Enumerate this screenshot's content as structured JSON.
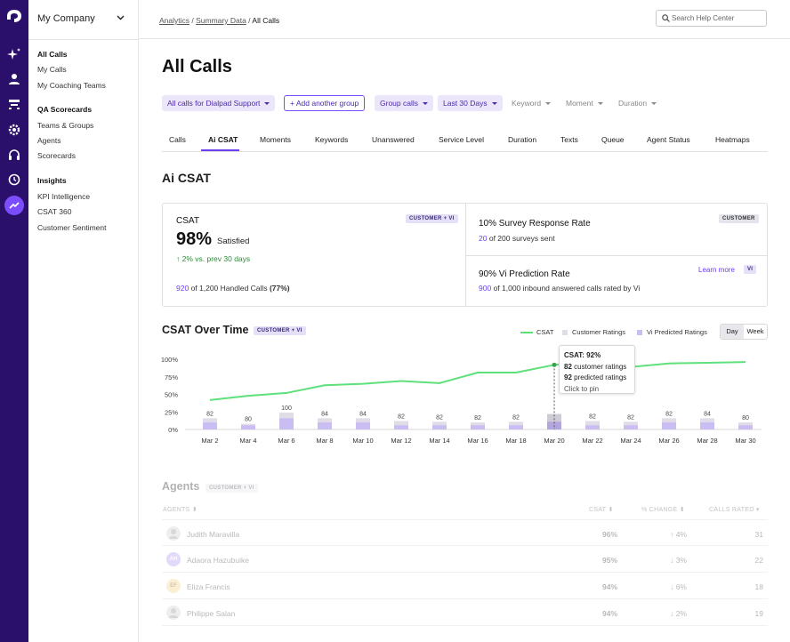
{
  "sidebar": {
    "company": "My Company",
    "sections": [
      {
        "items": [
          "All Calls",
          "My Calls",
          "My Coaching Teams"
        ]
      },
      {
        "heading": "QA Scorecards",
        "items": [
          "Teams & Groups",
          "Agents",
          "Scorecards"
        ]
      },
      {
        "heading": "Insights",
        "items": [
          "KPI Intelligence",
          "CSAT 360",
          "Customer Sentiment"
        ]
      }
    ]
  },
  "breadcrumb": {
    "items": [
      "Analytics",
      "Summary Data"
    ],
    "current": "All Calls",
    "sep": " / "
  },
  "search": {
    "placeholder": "Search Help Center"
  },
  "page": {
    "title": "All Calls"
  },
  "filters": {
    "group": "All calls for Dialpad Support",
    "add_group": "+ Add another group",
    "group_calls": "Group calls",
    "range": "Last 30 Days",
    "keyword": "Keyword",
    "moment": "Moment",
    "duration": "Duration"
  },
  "tabs": [
    "Calls",
    "Ai CSAT",
    "Moments",
    "Keywords",
    "Unanswered",
    "Service Level",
    "Duration",
    "Texts",
    "Queue",
    "Agent Status",
    "Heatmaps"
  ],
  "section_title": "Ai CSAT",
  "stats": {
    "csat": {
      "label": "CSAT",
      "badge": "CUSTOMER + VI",
      "value": "98%",
      "value_suffix": "Satisfied",
      "change": "2% vs. prev 30 days",
      "handled_num": "920",
      "handled_text": "of 1,200 Handled Calls",
      "handled_pct": "(77%)"
    },
    "survey": {
      "label": "10% Survey Response Rate",
      "badge": "CUSTOMER",
      "num": "20",
      "text": "of 200 surveys sent"
    },
    "prediction": {
      "label": "90% Vi Prediction Rate",
      "learn_more": "Learn more",
      "badge": "VI",
      "num": "900",
      "text": "of 1,000 inbound answered calls rated by Vi"
    }
  },
  "chart_title": "CSAT Over Time",
  "chart_badge": "CUSTOMER + VI",
  "legend": {
    "csat": "CSAT",
    "customer": "Customer Ratings",
    "predicted": "Vi Predicted Ratings"
  },
  "toggle": {
    "day": "Day",
    "week": "Week"
  },
  "colors": {
    "csat_line": "#5ee07a",
    "customer_bar": "#e0dde8",
    "predicted_bar": "#c9bdf2",
    "accent": "#6b3ef0"
  },
  "chart_data": {
    "type": "bar+line",
    "x": [
      "Mar 2",
      "Mar 4",
      "Mar 6",
      "Mar 8",
      "Mar 10",
      "Mar 12",
      "Mar 14",
      "Mar 16",
      "Mar 18",
      "Mar 20",
      "Mar 22",
      "Mar 24",
      "Mar 26",
      "Mar 28",
      "Mar 30"
    ],
    "y_ticks": [
      "0%",
      "25%",
      "50%",
      "75%",
      "100%"
    ],
    "ylim": [
      0,
      100
    ],
    "bar_labels": [
      82,
      80,
      100,
      84,
      84,
      82,
      82,
      82,
      82,
      null,
      82,
      82,
      82,
      84,
      80
    ],
    "series": [
      {
        "name": "CSAT",
        "type": "line",
        "values": [
          42,
          48,
          52,
          63,
          65,
          69,
          66,
          81,
          81,
          92,
          96,
          89,
          94,
          95,
          96
        ]
      },
      {
        "name": "Customer Ratings",
        "type": "bar",
        "values": [
          16,
          8,
          24,
          16,
          16,
          12,
          11,
          10,
          11,
          22,
          12,
          11,
          16,
          16,
          10
        ]
      },
      {
        "name": "Vi Predicted Ratings",
        "type": "bar",
        "values": [
          10,
          6,
          16,
          10,
          10,
          6,
          6,
          6,
          6,
          11,
          6,
          6,
          10,
          10,
          6
        ]
      }
    ]
  },
  "tooltip": {
    "title": "CSAT: 92%",
    "customer_num": "82",
    "customer_text": "customer ratings",
    "predicted_num": "92",
    "predicted_text": "predicted ratings",
    "hint": "Click to pin"
  },
  "agents": {
    "title": "Agents",
    "badge": "CUSTOMER + VI",
    "columns": [
      "AGENTS",
      "CSAT",
      "% CHANGE",
      "CALLS RATED"
    ],
    "rows": [
      {
        "initials": "",
        "name": "Judith Maravilla",
        "csat": "96%",
        "change": "↑ 4%",
        "rated": "31"
      },
      {
        "initials": "AH",
        "name": "Adaora Hazubuike",
        "csat": "95%",
        "change": "↓ 3%",
        "rated": "22"
      },
      {
        "initials": "EF",
        "name": "Eliza Francis",
        "csat": "94%",
        "change": "↓ 6%",
        "rated": "18"
      },
      {
        "initials": "",
        "name": "Philippe Salan",
        "csat": "94%",
        "change": "↓ 2%",
        "rated": "19"
      }
    ]
  }
}
